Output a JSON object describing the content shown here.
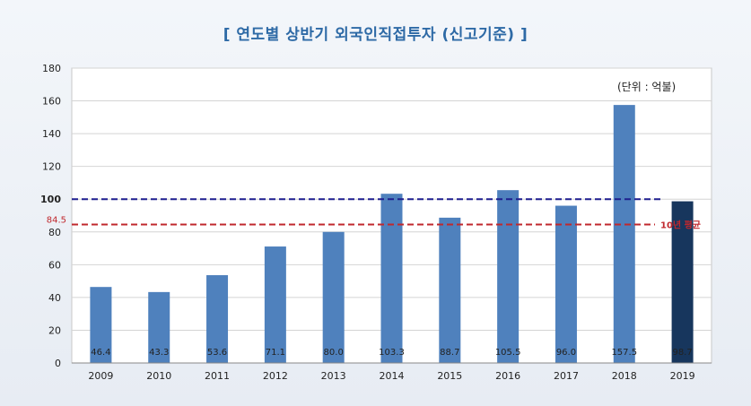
{
  "title": "[ 연도별 상반기 외국인직접투자 (신고기준) ]",
  "unit_note": "(단위 : 억불)",
  "colors": {
    "bar": "#4f81bd",
    "bar_highlight": "#17365d",
    "line_100": "#1f1f8f",
    "line_avg": "#c0282d",
    "grid": "#d4d4d4",
    "title": "#2e6aa6"
  },
  "chart_data": {
    "type": "bar",
    "title": "[ 연도별 상반기 외국인직접투자 (신고기준) ]",
    "categories": [
      "2009",
      "2010",
      "2011",
      "2012",
      "2013",
      "2014",
      "2015",
      "2016",
      "2017",
      "2018",
      "2019"
    ],
    "values": [
      46.4,
      43.3,
      53.6,
      71.1,
      80.0,
      103.3,
      88.7,
      105.5,
      96.0,
      157.5,
      98.7
    ],
    "value_labels": [
      "46.4",
      "43.3",
      "53.6",
      "71.1",
      "80.0",
      "103.3",
      "88.7",
      "105.5",
      "96.0",
      "157.5",
      "98.7"
    ],
    "highlight_index": 10,
    "ylim": [
      0,
      180
    ],
    "yticks": [
      0,
      20,
      40,
      60,
      80,
      100,
      120,
      140,
      160,
      180
    ],
    "xlabel": "",
    "ylabel": "",
    "grid": true,
    "reference_lines": [
      {
        "value": 100,
        "label": "",
        "style": "dashed"
      },
      {
        "value": 84.5,
        "label": "10년 평균",
        "left_label": "84.5",
        "style": "dashed"
      }
    ]
  }
}
